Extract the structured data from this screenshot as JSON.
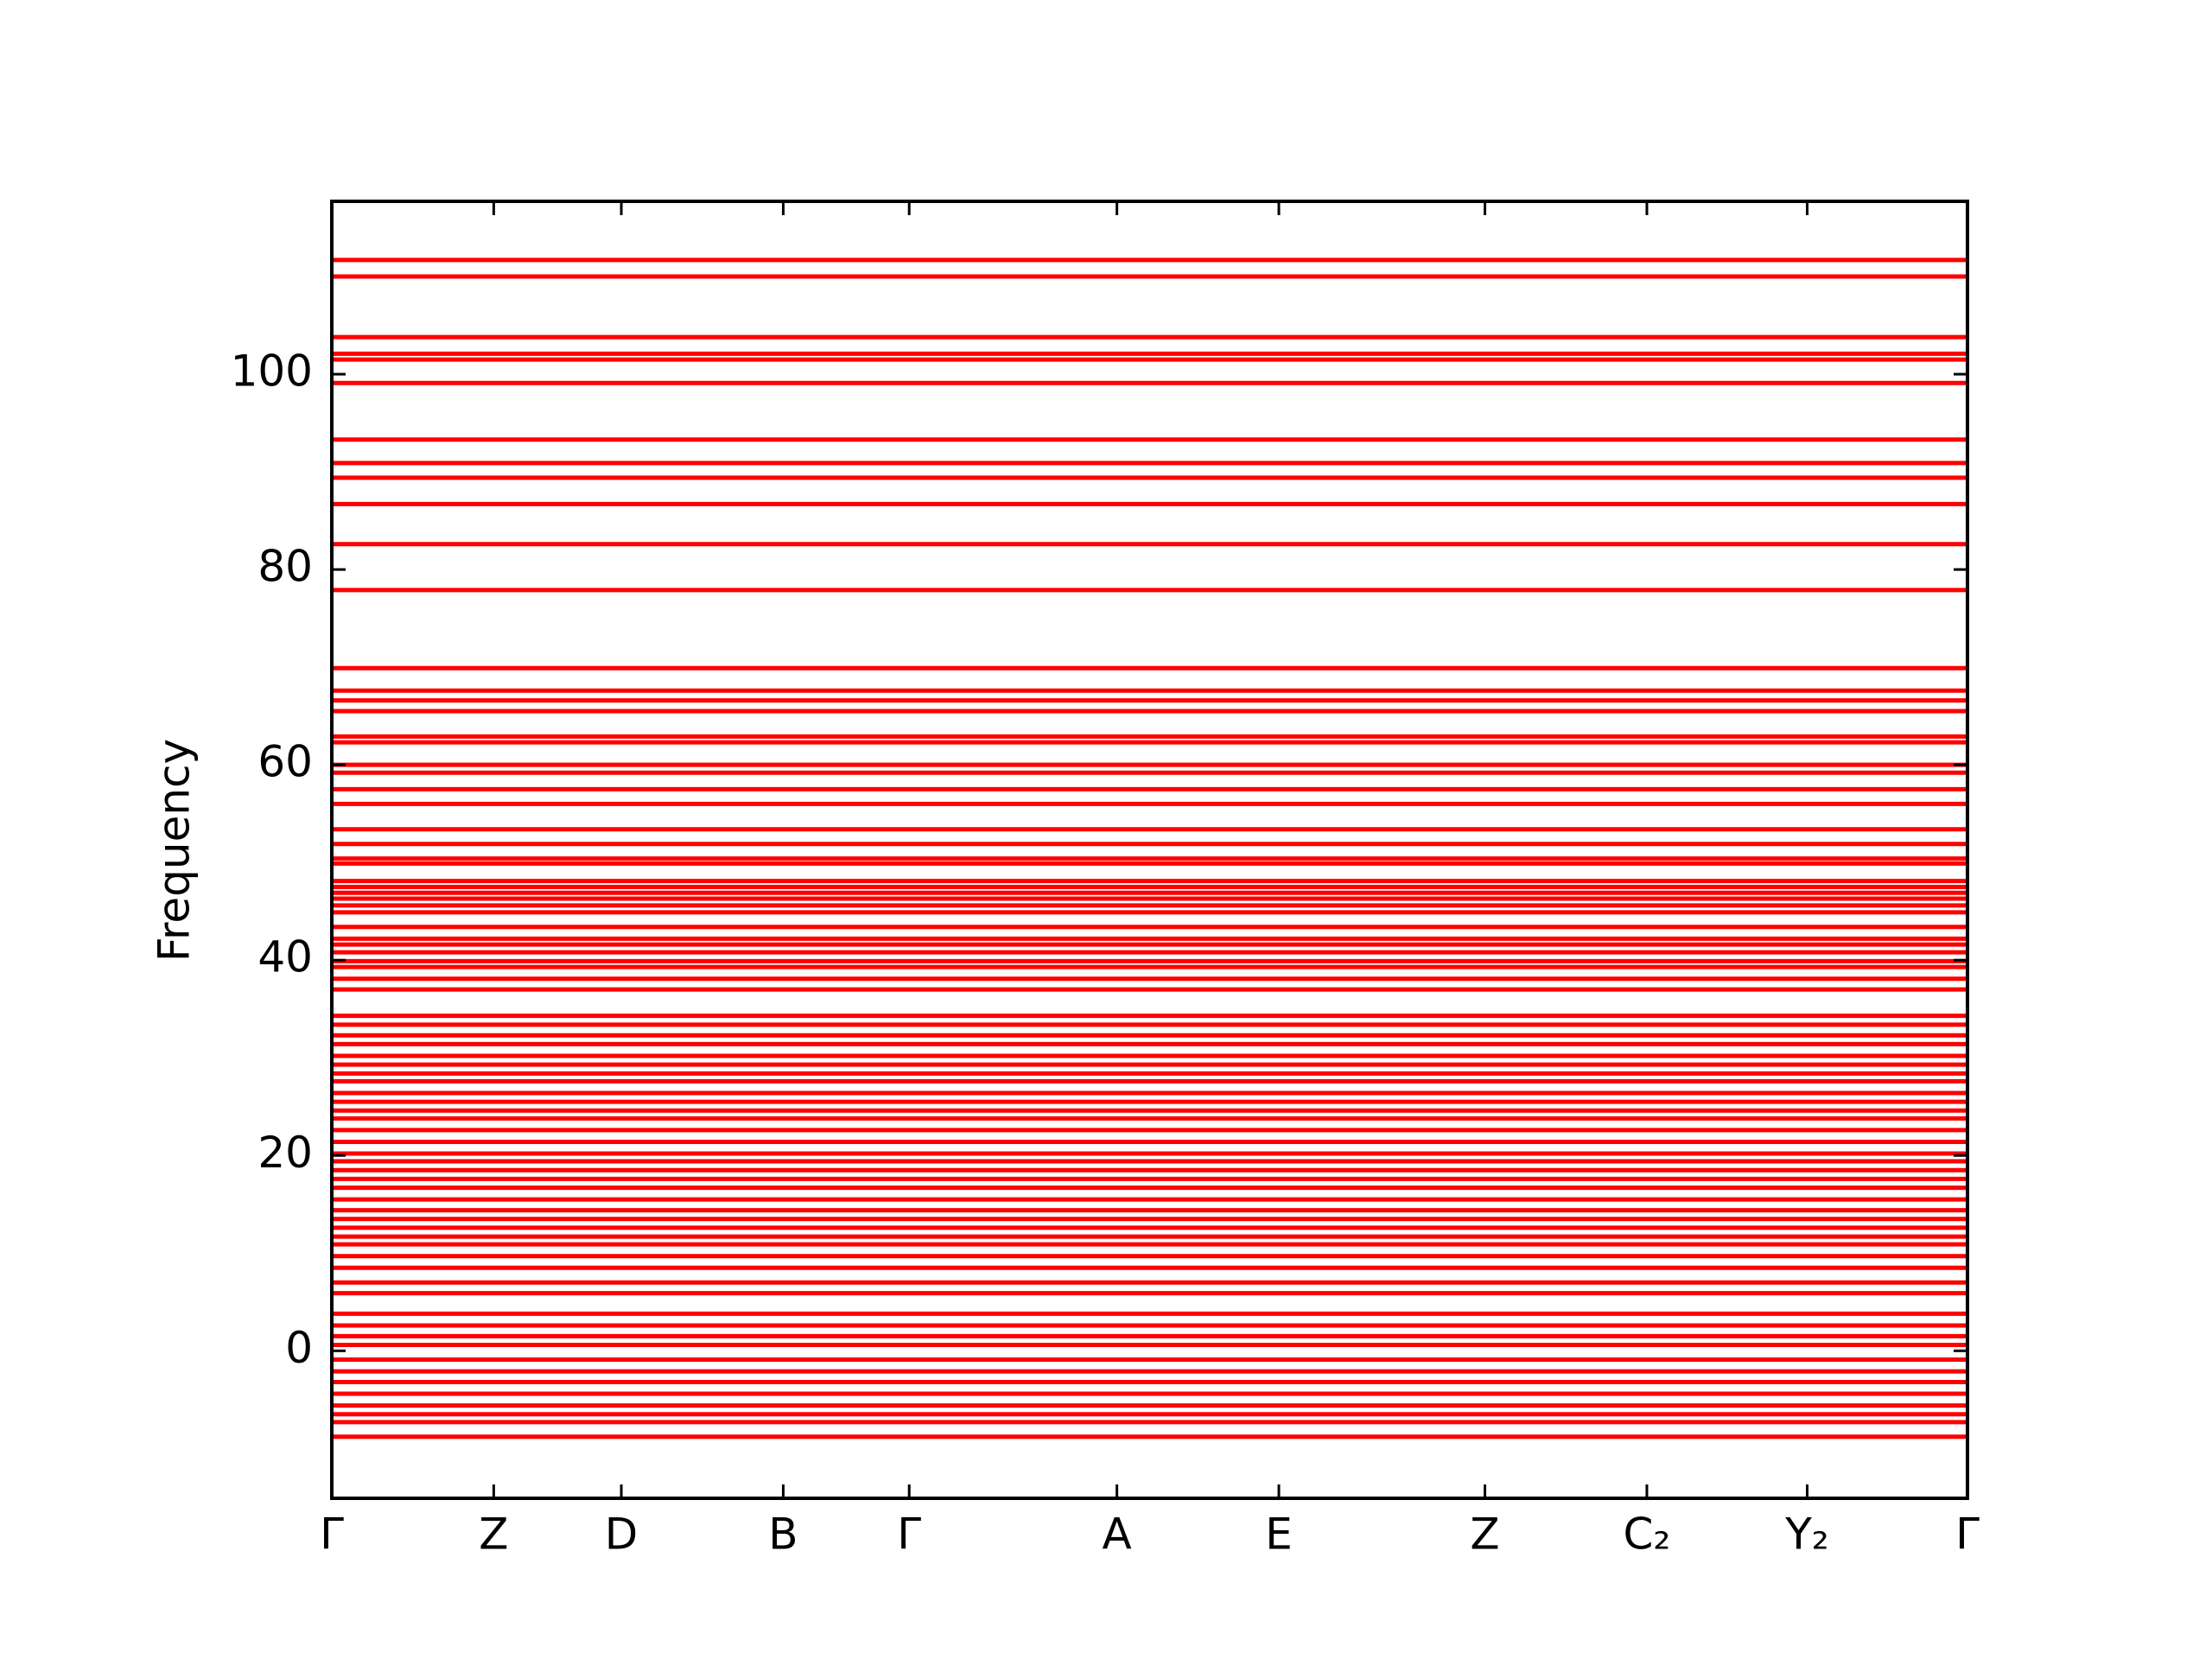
{
  "chart_data": {
    "type": "bands",
    "ylabel": "Frequency",
    "color": "#ff0000",
    "xlim": [
      0,
      1
    ],
    "xticks": [
      {
        "value": 0,
        "label": "Γ"
      },
      {
        "value": 0.099,
        "label": "Z"
      },
      {
        "value": 0.177,
        "label": "D"
      },
      {
        "value": 0.276,
        "label": "B"
      },
      {
        "value": 0.353,
        "label": "Γ"
      },
      {
        "value": 0.48,
        "label": "A"
      },
      {
        "value": 0.579,
        "label": "E"
      },
      {
        "value": 0.705,
        "label": "Z"
      },
      {
        "value": 0.804,
        "label": "C₂"
      },
      {
        "value": 0.902,
        "label": "Y₂"
      },
      {
        "value": 1,
        "label": "Γ"
      }
    ],
    "ylim": [
      -15.1,
      117.7
    ],
    "yticks": [
      0,
      20,
      40,
      60,
      80,
      100
    ],
    "zero_line": true,
    "bands": [
      111.7,
      110.0,
      103.8,
      102.1,
      101.5,
      99.1,
      93.3,
      90.9,
      89.4,
      86.7,
      82.6,
      77.9,
      69.9,
      67.6,
      66.6,
      65.5,
      62.9,
      62.3,
      60.0,
      59.2,
      57.5,
      56.0,
      53.4,
      51.9,
      50.4,
      49.9,
      48.1,
      47.5,
      46.9,
      46.3,
      45.6,
      44.9,
      43.4,
      42.2,
      41.6,
      40.8,
      39.9,
      39.3,
      38.1,
      37.0,
      34.3,
      33.4,
      32.3,
      31.4,
      30.2,
      29.3,
      28.4,
      27.6,
      26.4,
      25.5,
      24.6,
      23.8,
      22.6,
      21.4,
      20.2,
      19.4,
      18.5,
      17.6,
      16.7,
      15.5,
      14.4,
      13.5,
      12.6,
      11.7,
      10.9,
      9.7,
      8.5,
      7.0,
      5.9,
      3.8,
      2.6,
      1.5,
      0.6,
      -0.9,
      -2.1,
      -3.2,
      -4.4,
      -5.6,
      -6.5,
      -7.3,
      -8.8
    ]
  }
}
